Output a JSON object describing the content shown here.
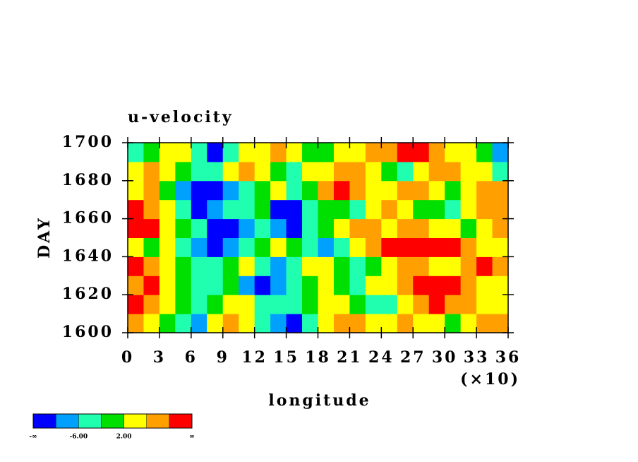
{
  "chart_data": {
    "type": "contour",
    "title": "u-velocity",
    "x_label": "longitude",
    "y_label": "DAY",
    "x_multiplier": "(×10)",
    "xlim": [
      0,
      36
    ],
    "xticks": [
      0,
      3,
      6,
      9,
      12,
      15,
      18,
      21,
      24,
      27,
      30,
      33,
      36
    ],
    "ylim": [
      1600,
      1700
    ],
    "yticks": [
      1600,
      1620,
      1640,
      1660,
      1680,
      1700
    ],
    "x": [
      0.75,
      2.25,
      3.75,
      5.25,
      6.75,
      8.25,
      9.75,
      11.25,
      12.75,
      14.25,
      15.75,
      17.25,
      18.75,
      20.25,
      21.75,
      23.25,
      24.75,
      26.25,
      27.75,
      29.25,
      30.75,
      32.25,
      33.75,
      35.25
    ],
    "y": [
      1605,
      1615,
      1625,
      1635,
      1645,
      1655,
      1665,
      1675,
      1685,
      1695
    ],
    "z": [
      [
        8,
        4,
        -2,
        -6,
        -8,
        2,
        6,
        4,
        -4,
        -8,
        -12,
        -6,
        2,
        6,
        8,
        4,
        2,
        6,
        4,
        2,
        0,
        4,
        8,
        6
      ],
      [
        12,
        6,
        2,
        -2,
        -4,
        0,
        4,
        2,
        -4,
        -6,
        -4,
        0,
        4,
        2,
        -2,
        -6,
        -4,
        2,
        6,
        10,
        8,
        6,
        4,
        2
      ],
      [
        6,
        10,
        4,
        0,
        -4,
        -6,
        -2,
        -8,
        -12,
        -10,
        -6,
        -2,
        2,
        -2,
        -4,
        2,
        4,
        6,
        12,
        14,
        12,
        8,
        4,
        2
      ],
      [
        12,
        6,
        2,
        -2,
        -6,
        -4,
        0,
        2,
        -4,
        -8,
        -4,
        2,
        4,
        0,
        -4,
        -2,
        4,
        8,
        6,
        2,
        4,
        8,
        10,
        6
      ],
      [
        2,
        -2,
        4,
        -4,
        -8,
        -12,
        -10,
        -6,
        -2,
        2,
        -2,
        -6,
        -8,
        -4,
        2,
        6,
        10,
        12,
        12,
        14,
        10,
        6,
        2,
        4
      ],
      [
        14,
        12,
        4,
        -2,
        -6,
        -12,
        -12,
        -8,
        -4,
        -8,
        -12,
        -6,
        -2,
        2,
        6,
        8,
        4,
        6,
        8,
        4,
        2,
        -2,
        2,
        6
      ],
      [
        12,
        8,
        2,
        -6,
        -12,
        -10,
        -6,
        -4,
        -2,
        -12,
        -14,
        -6,
        -2,
        0,
        -4,
        2,
        6,
        4,
        0,
        -2,
        -4,
        2,
        6,
        8
      ],
      [
        4,
        6,
        -2,
        -8,
        -12,
        -14,
        -8,
        -4,
        0,
        2,
        -4,
        -2,
        8,
        12,
        6,
        2,
        4,
        8,
        6,
        2,
        -2,
        4,
        8,
        6
      ],
      [
        2,
        8,
        4,
        -2,
        -6,
        -4,
        2,
        6,
        4,
        -2,
        -4,
        2,
        4,
        6,
        8,
        2,
        -2,
        -4,
        2,
        8,
        6,
        4,
        2,
        -4
      ],
      [
        -4,
        -2,
        2,
        4,
        -6,
        -12,
        -4,
        2,
        4,
        6,
        2,
        -2,
        0,
        4,
        2,
        6,
        8,
        12,
        10,
        6,
        4,
        2,
        -2,
        -8
      ]
    ],
    "levels": [
      -10,
      -6,
      -2,
      2,
      6,
      10
    ],
    "colors": [
      "#0000ff",
      "#00a0ff",
      "#20ffb0",
      "#00e000",
      "#ffff00",
      "#ffa000",
      "#ff0000"
    ],
    "colorbar_min_label": "-∞",
    "colorbar_max_label": "∞",
    "colorbar_labels": [
      {
        "value": -6,
        "label": "-6.00"
      },
      {
        "value": 2,
        "label": "2.00"
      }
    ]
  }
}
